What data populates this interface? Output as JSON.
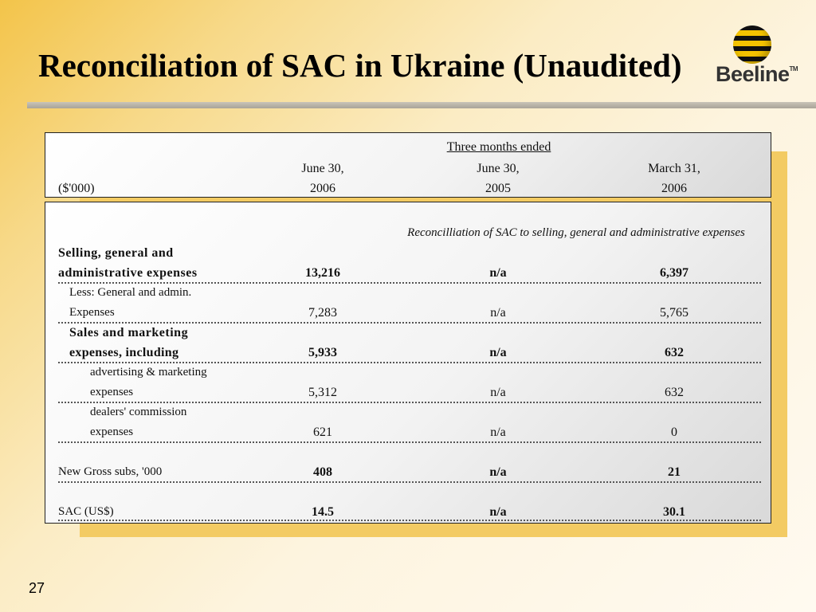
{
  "title": "Reconciliation of SAC in Ukraine (Unaudited)",
  "logo": {
    "text": "Beeline",
    "tm": "TM",
    "icon": "beeline-striped-ball"
  },
  "page_number": "27",
  "header": {
    "period_label": "Three months ended",
    "unit_label": "($'000)",
    "columns": [
      {
        "line1": "June 30,",
        "line2": "2006"
      },
      {
        "line1": "June 30,",
        "line2": "2005"
      },
      {
        "line1": "March 31,",
        "line2": "2006"
      }
    ]
  },
  "caption": "Reconcilliation of SAC to selling, general and administrative expenses",
  "rows": [
    {
      "label1": "Selling, general and",
      "label2": "administrative expenses",
      "values": [
        "13,216",
        "n/a",
        "6,397"
      ]
    },
    {
      "label1": "Less: General and admin.",
      "label2": "Expenses",
      "values": [
        "7,283",
        "n/a",
        "5,765"
      ]
    },
    {
      "label1": "Sales and marketing",
      "label2": "expenses, including",
      "values": [
        "5,933",
        "n/a",
        "632"
      ]
    },
    {
      "label1": "advertising & marketing",
      "label2": "expenses",
      "values": [
        "5,312",
        "n/a",
        "632"
      ]
    },
    {
      "label1": "dealers' commission",
      "label2": "expenses",
      "values": [
        "621",
        "n/a",
        "0"
      ]
    },
    {
      "label1": "",
      "label2": "New Gross subs, '000",
      "values": [
        "408",
        "n/a",
        "21"
      ]
    },
    {
      "label1": "",
      "label2": "SAC (US$)",
      "values": [
        "14.5",
        "n/a",
        "30.1"
      ]
    }
  ],
  "colors": {
    "accent": "#f3c44a",
    "logo_yellow": "#f5c400"
  }
}
